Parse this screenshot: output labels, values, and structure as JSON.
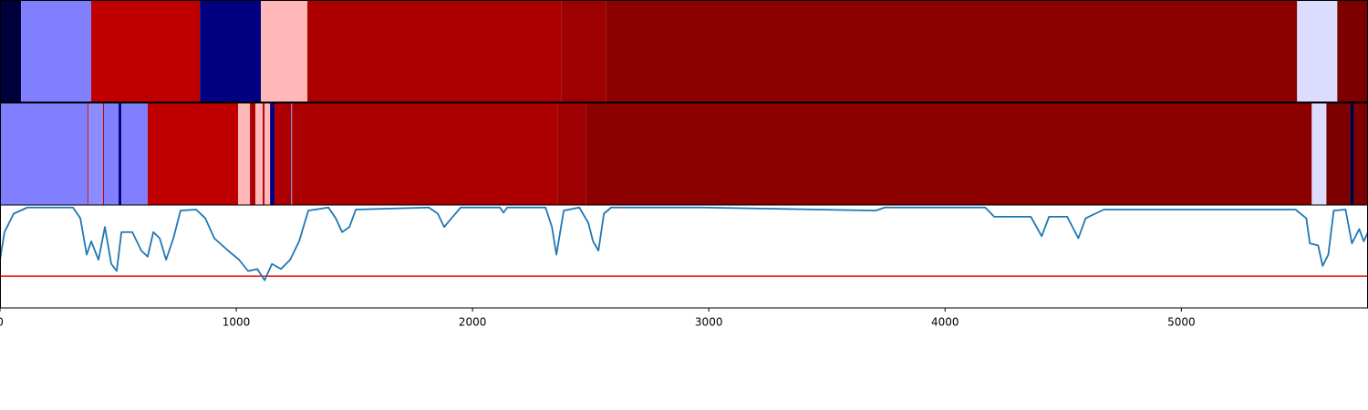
{
  "chart_data": [
    {
      "type": "segments",
      "xlim": [
        0,
        5790
      ],
      "edges": [
        0,
        89,
        386,
        846,
        1104,
        1301,
        2375,
        2564,
        5490,
        5660,
        5790
      ],
      "colors": [
        "#00003a",
        "#8080ff",
        "#c00000",
        "#000080",
        "#ffb8b8",
        "#ac0000",
        "#9c0000",
        "#8c0000",
        "#dcdcff",
        "#7c0000"
      ]
    },
    {
      "type": "segments",
      "xlim": [
        0,
        5790
      ],
      "edges": [
        0,
        371,
        375,
        436,
        440,
        502,
        514,
        625,
        1008,
        1058,
        1081,
        1112,
        1120,
        1143,
        1162,
        1232,
        1236,
        2359,
        2479,
        5552,
        5614,
        5714,
        5730,
        5790
      ],
      "colors": [
        "#8080ff",
        "#c00000",
        "#8c8cff",
        "#c00000",
        "#8080ff",
        "#000080",
        "#8080ff",
        "#c00000",
        "#ffb8b8",
        "#ac0000",
        "#ffb8b8",
        "#ac0000",
        "#ffb8b8",
        "#000080",
        "#ac0000",
        "#8080ff",
        "#ac0000",
        "#9c0000",
        "#8c0000",
        "#dcdcff",
        "#7c0000",
        "#00003a",
        "#7c0000"
      ]
    },
    {
      "type": "line",
      "xlim": [
        0,
        5790
      ],
      "ylim": [
        0,
        1
      ],
      "xticks": [
        0,
        1000,
        2000,
        3000,
        4000,
        5000
      ],
      "threshold": 0.31,
      "threshold_color": "#ff0000",
      "series": [
        {
          "color": "#1f77b4",
          "x": [
            0,
            19,
            58,
            116,
            309,
            340,
            367,
            386,
            417,
            444,
            471,
            494,
            514,
            560,
            598,
            625,
            649,
            676,
            703,
            734,
            764,
            830,
            869,
            907,
            965,
            1012,
            1050,
            1089,
            1120,
            1151,
            1189,
            1228,
            1266,
            1305,
            1390,
            1421,
            1448,
            1479,
            1506,
            1815,
            1853,
            1880,
            1911,
            1950,
            2116,
            2131,
            2147,
            2309,
            2336,
            2355,
            2386,
            2452,
            2490,
            2510,
            2533,
            2556,
            2587,
            2973,
            3707,
            3745,
            4170,
            4208,
            4363,
            4409,
            4440,
            4517,
            4564,
            4595,
            4672,
            5483,
            5529,
            5544,
            5579,
            5598,
            5622,
            5645,
            5695,
            5722,
            5753,
            5772,
            5790
          ],
          "values": [
            0.47,
            0.74,
            0.92,
            0.98,
            0.98,
            0.875,
            0.52,
            0.65,
            0.47,
            0.79,
            0.43,
            0.36,
            0.74,
            0.74,
            0.56,
            0.5,
            0.74,
            0.68,
            0.47,
            0.68,
            0.95,
            0.96,
            0.875,
            0.68,
            0.56,
            0.47,
            0.36,
            0.38,
            0.27,
            0.43,
            0.38,
            0.47,
            0.65,
            0.95,
            0.98,
            0.875,
            0.74,
            0.79,
            0.96,
            0.98,
            0.92,
            0.79,
            0.875,
            0.98,
            0.98,
            0.93,
            0.98,
            0.98,
            0.79,
            0.52,
            0.95,
            0.98,
            0.83,
            0.65,
            0.56,
            0.92,
            0.98,
            0.98,
            0.95,
            0.98,
            0.98,
            0.89,
            0.89,
            0.7,
            0.89,
            0.89,
            0.68,
            0.875,
            0.96,
            0.96,
            0.875,
            0.63,
            0.61,
            0.41,
            0.52,
            0.95,
            0.96,
            0.63,
            0.77,
            0.65,
            0.74
          ]
        }
      ]
    }
  ]
}
